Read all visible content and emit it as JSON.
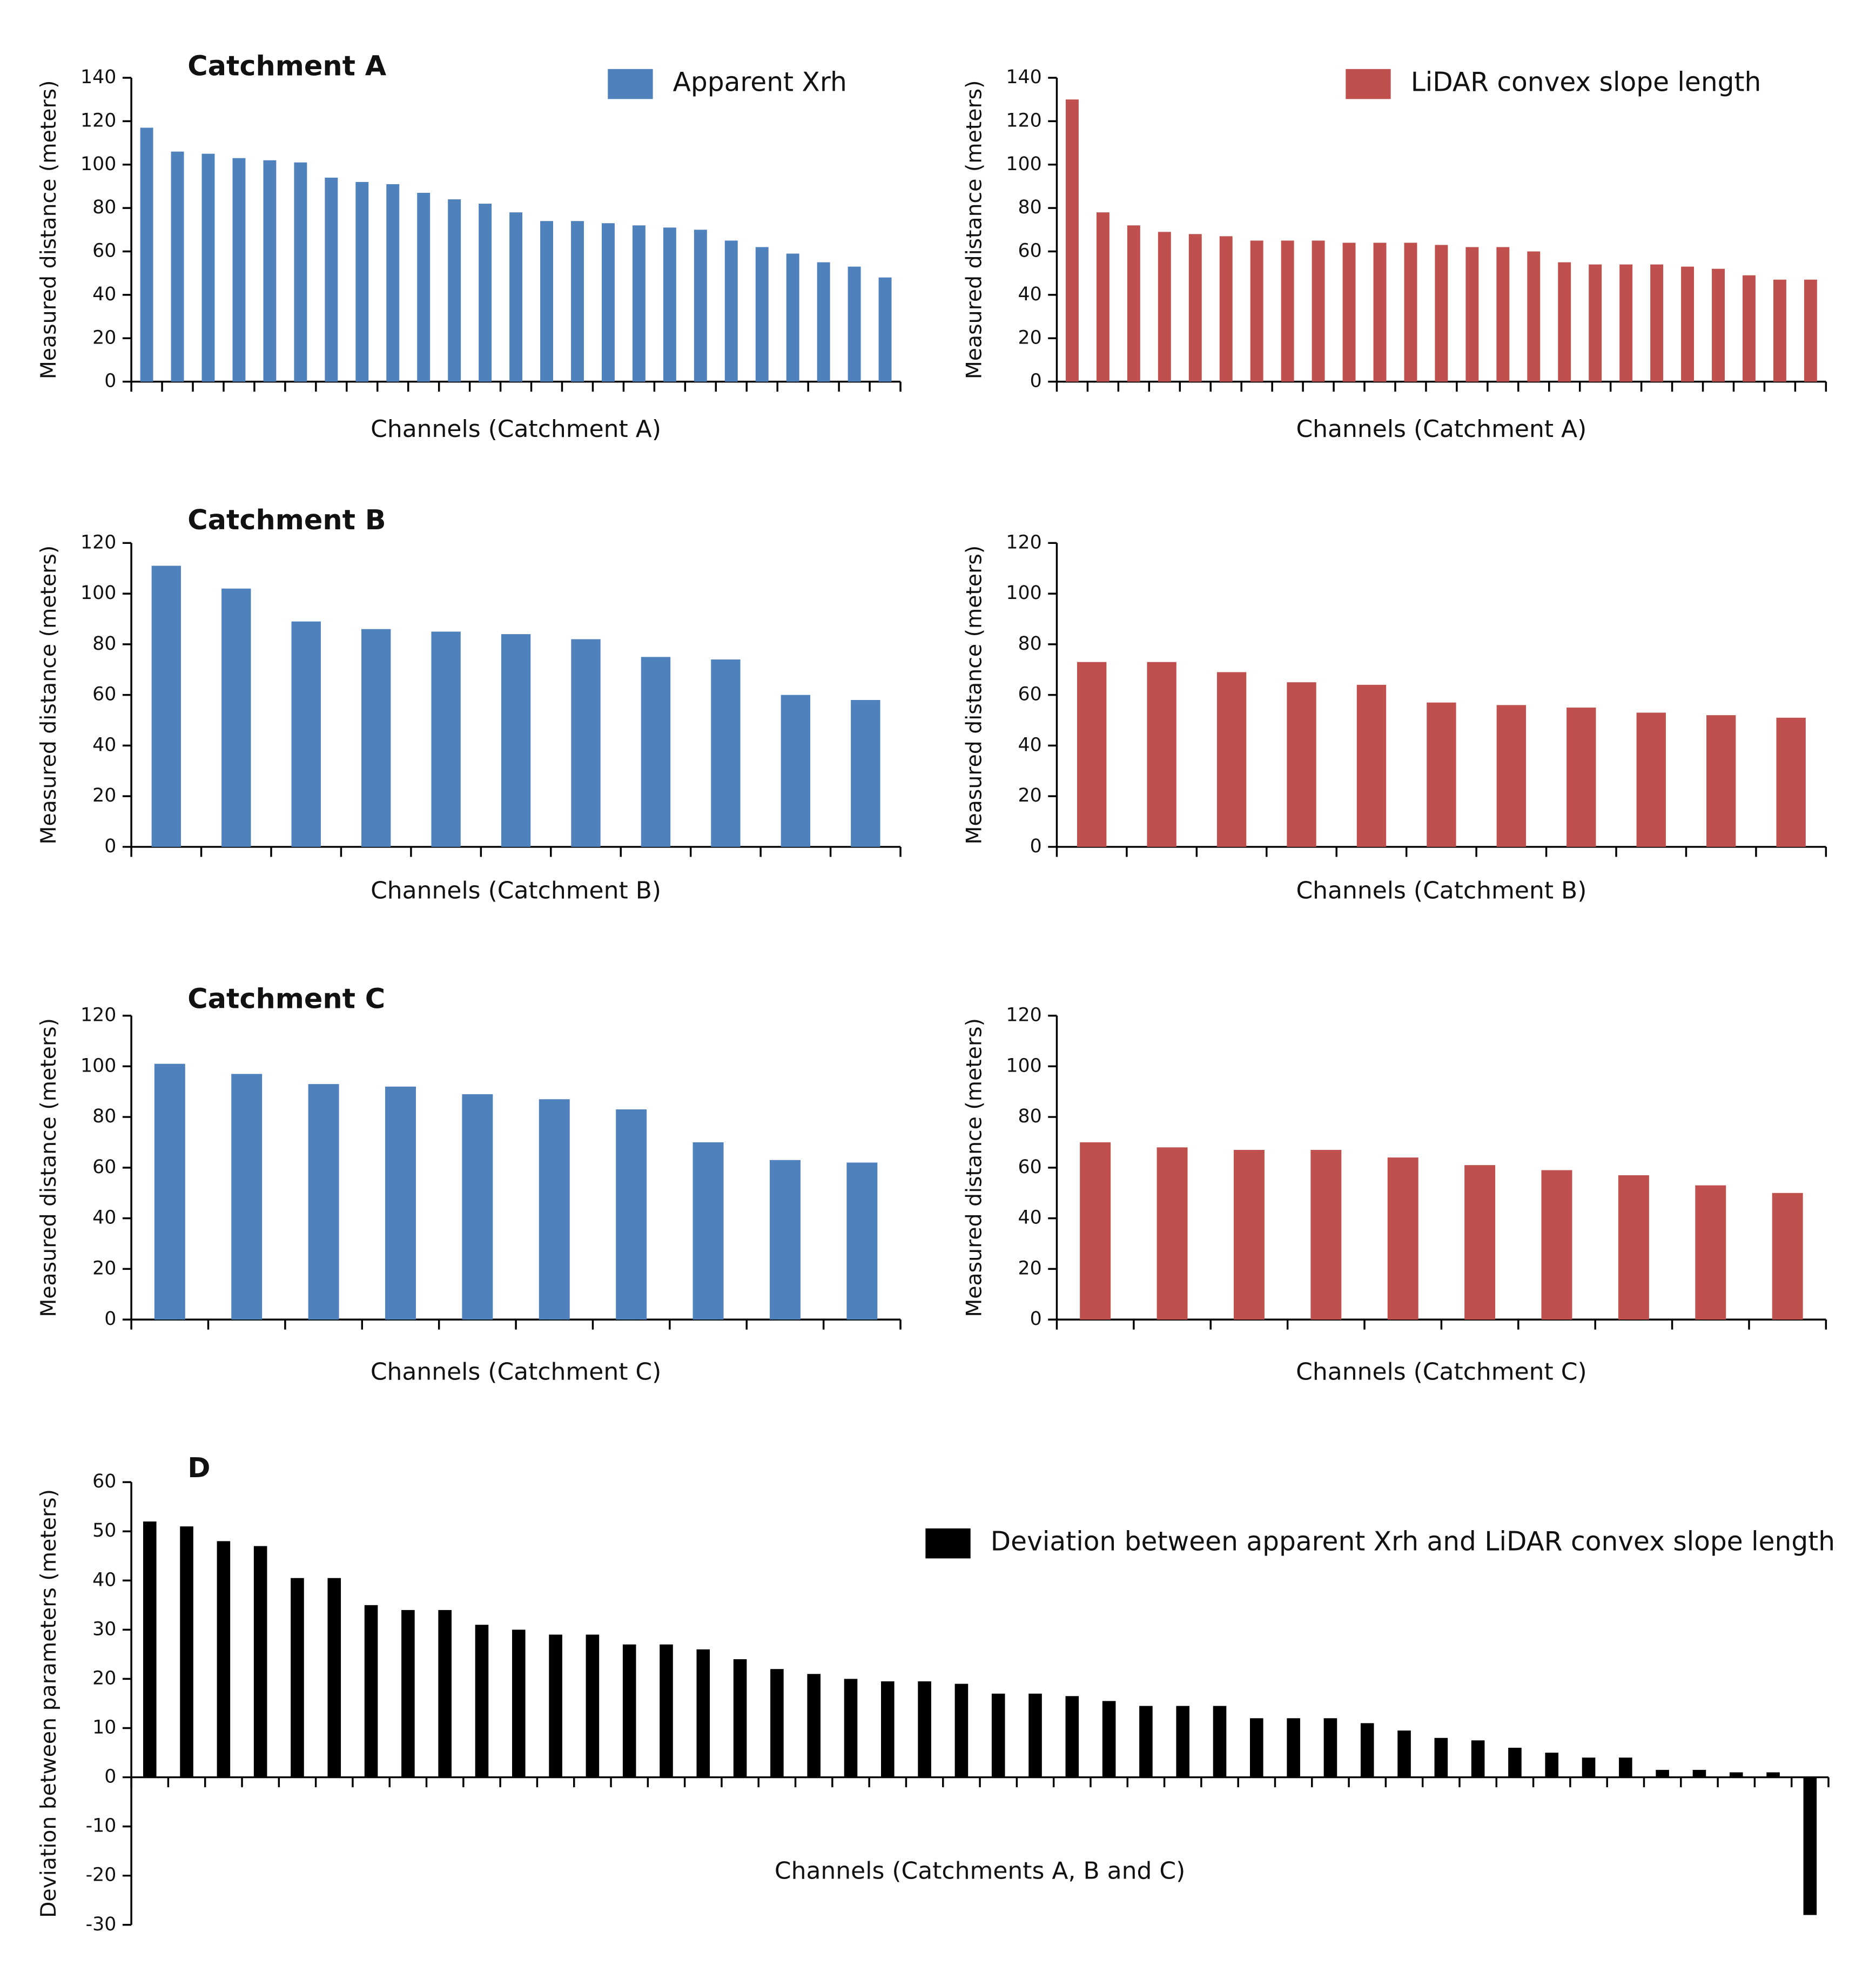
{
  "chart_data": [
    {
      "type": "bar",
      "title": "Catchment A",
      "xlabel": "Channels (Catchment A)",
      "ylabel": "Measured distance (meters)",
      "categories": [
        null,
        null,
        null,
        null,
        null,
        null,
        null,
        null,
        null,
        null,
        null,
        null,
        null,
        null,
        null,
        null,
        null,
        null,
        null,
        null,
        null,
        null,
        null,
        null,
        null
      ],
      "series": [
        {
          "name": "Apparent Xrh",
          "color": "#4f81bd",
          "values": [
            117,
            106,
            105,
            103,
            102,
            101,
            94,
            92,
            91,
            87,
            84,
            82,
            78,
            74,
            74,
            73,
            72,
            71,
            70,
            65,
            62,
            59,
            55,
            53,
            48
          ]
        }
      ],
      "ylim": [
        0,
        140
      ],
      "yticks": [
        0,
        20,
        40,
        60,
        80,
        100,
        120,
        140
      ]
    },
    {
      "type": "bar",
      "xlabel": "Channels (Catchment A)",
      "ylabel": "Measured distance (meters)",
      "categories": [
        null,
        null,
        null,
        null,
        null,
        null,
        null,
        null,
        null,
        null,
        null,
        null,
        null,
        null,
        null,
        null,
        null,
        null,
        null,
        null,
        null,
        null,
        null,
        null,
        null
      ],
      "series": [
        {
          "name": "LiDAR convex slope length",
          "color": "#c0504d",
          "values": [
            130,
            78,
            72,
            69,
            68,
            67,
            65,
            65,
            65,
            64,
            64,
            64,
            63,
            62,
            62,
            60,
            55,
            54,
            54,
            54,
            53,
            52,
            49,
            47,
            47
          ]
        }
      ],
      "ylim": [
        0,
        140
      ],
      "yticks": [
        0,
        20,
        40,
        60,
        80,
        100,
        120,
        140
      ]
    },
    {
      "type": "bar",
      "title": "Catchment B",
      "xlabel": "Channels (Catchment B)",
      "ylabel": "Measured distance (meters)",
      "categories": [
        null,
        null,
        null,
        null,
        null,
        null,
        null,
        null,
        null,
        null,
        null
      ],
      "color": "#4f81bd",
      "values": [
        111,
        102,
        89,
        86,
        85,
        84,
        82,
        75,
        74,
        60,
        58
      ],
      "ylim": [
        0,
        120
      ],
      "yticks": [
        0,
        20,
        40,
        60,
        80,
        100,
        120
      ]
    },
    {
      "type": "bar",
      "xlabel": "Channels (Catchment B)",
      "ylabel": "Measured distance (meters)",
      "categories": [
        null,
        null,
        null,
        null,
        null,
        null,
        null,
        null,
        null,
        null,
        null
      ],
      "color": "#c0504d",
      "values": [
        73,
        73,
        69,
        65,
        64,
        57,
        56,
        55,
        53,
        52,
        51
      ],
      "ylim": [
        0,
        120
      ],
      "yticks": [
        0,
        20,
        40,
        60,
        80,
        100,
        120
      ]
    },
    {
      "type": "bar",
      "title": "Catchment C",
      "xlabel": "Channels (Catchment C)",
      "ylabel": "Measured distance (meters)",
      "categories": [
        null,
        null,
        null,
        null,
        null,
        null,
        null,
        null,
        null,
        null
      ],
      "color": "#4f81bd",
      "values": [
        101,
        97,
        93,
        92,
        89,
        87,
        83,
        70,
        63,
        62
      ],
      "ylim": [
        0,
        120
      ],
      "yticks": [
        0,
        20,
        40,
        60,
        80,
        100,
        120
      ]
    },
    {
      "type": "bar",
      "xlabel": "Channels (Catchment C)",
      "ylabel": "Measured distance (meters)",
      "categories": [
        null,
        null,
        null,
        null,
        null,
        null,
        null,
        null,
        null,
        null
      ],
      "color": "#c0504d",
      "values": [
        70,
        68,
        67,
        67,
        64,
        61,
        59,
        57,
        53,
        50
      ],
      "ylim": [
        0,
        120
      ],
      "yticks": [
        0,
        20,
        40,
        60,
        80,
        100,
        120
      ]
    },
    {
      "type": "bar",
      "title": "D",
      "xlabel": "Channels (Catchments A, B and C)",
      "ylabel": "Deviation between parameters (meters)",
      "categories": [
        null,
        null,
        null,
        null,
        null,
        null,
        null,
        null,
        null,
        null,
        null,
        null,
        null,
        null,
        null,
        null,
        null,
        null,
        null,
        null,
        null,
        null,
        null,
        null,
        null,
        null,
        null,
        null,
        null,
        null,
        null,
        null,
        null,
        null,
        null,
        null,
        null,
        null,
        null,
        null,
        null,
        null,
        null,
        null,
        null,
        null
      ],
      "series": [
        {
          "name": "Deviation between apparent Xrh and LiDAR convex slope length",
          "color": "#000000",
          "values": [
            52,
            51,
            48,
            47,
            40.5,
            40.5,
            35,
            34,
            34,
            31,
            30,
            29,
            29,
            27,
            27,
            26,
            24,
            22,
            21,
            20,
            19.5,
            19.5,
            19,
            17,
            17,
            16.5,
            15.5,
            14.5,
            14.5,
            14.5,
            12,
            12,
            12,
            11,
            9.5,
            8,
            7.5,
            6,
            5,
            4,
            4,
            1.5,
            1.5,
            1,
            1,
            -28
          ]
        }
      ],
      "ylim": [
        -30,
        60
      ],
      "yticks": [
        -30,
        -20,
        -10,
        0,
        10,
        20,
        30,
        40,
        50,
        60
      ]
    }
  ]
}
